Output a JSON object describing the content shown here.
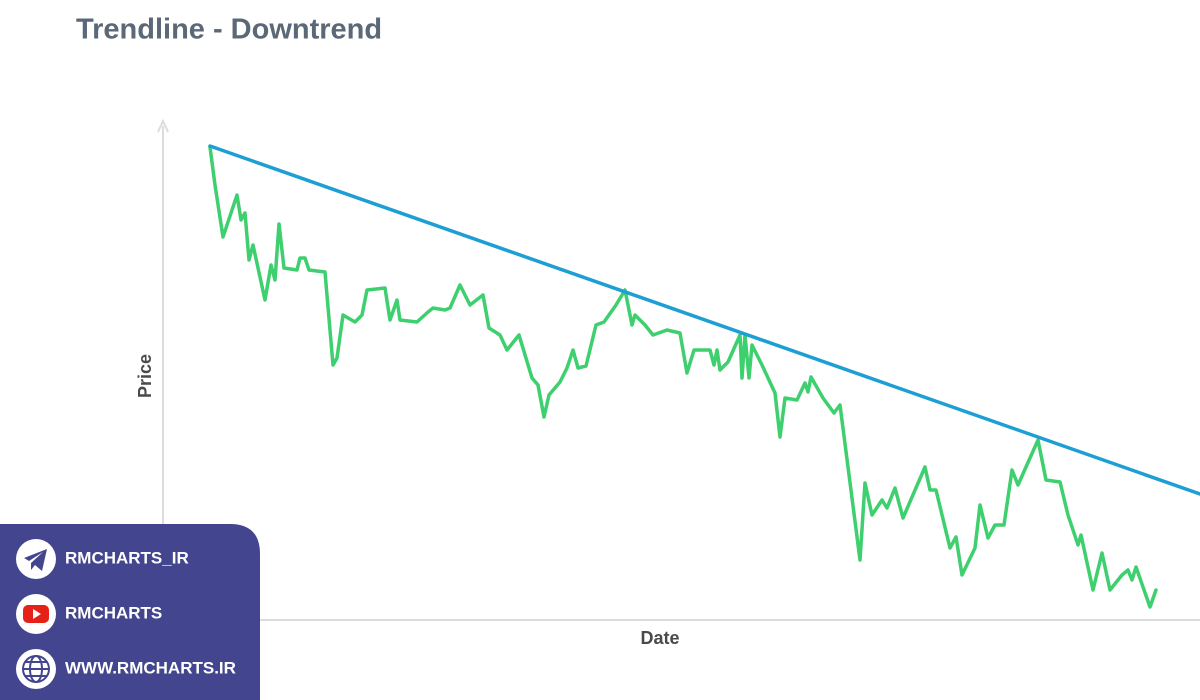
{
  "chart_data": {
    "type": "line",
    "title": "Trendline - Downtrend",
    "x_label": "Date",
    "y_label": "Price",
    "xlim": [
      0,
      1037
    ],
    "ylim": [
      0,
      500
    ],
    "grid": false,
    "series": [
      {
        "color": "#3ecf6e",
        "x": [
          47,
          52,
          60,
          74,
          78,
          82,
          86,
          90,
          102,
          108,
          112,
          116,
          121,
          134,
          137,
          142,
          146,
          162,
          170,
          174,
          180,
          192,
          199,
          204,
          222,
          227,
          234,
          237,
          254,
          265,
          270,
          282,
          287,
          297,
          307,
          320,
          326,
          337,
          344,
          356,
          369,
          375,
          381,
          386,
          397,
          404,
          410,
          415,
          423,
          433,
          441,
          453,
          462,
          469,
          472,
          482,
          490,
          504,
          517,
          524,
          531,
          547,
          551,
          554,
          557,
          565,
          577,
          579,
          582,
          586,
          589,
          599,
          612,
          617,
          622,
          634,
          642,
          645,
          648,
          660,
          671,
          677,
          697,
          702,
          709,
          719,
          724,
          732,
          740,
          762,
          767,
          773,
          787,
          793,
          799,
          812,
          817,
          825,
          832,
          841,
          849,
          855,
          875,
          883,
          897,
          905,
          915,
          918,
          930,
          939,
          947,
          959,
          965,
          969,
          973,
          987,
          993
        ],
        "values": [
          473,
          435,
          383,
          425,
          400,
          407,
          360,
          375,
          320,
          355,
          340,
          396,
          352,
          350,
          362,
          362,
          350,
          348,
          255,
          262,
          305,
          298,
          305,
          330,
          332,
          300,
          320,
          300,
          298,
          308,
          312,
          310,
          312,
          335,
          315,
          325,
          292,
          285,
          270,
          285,
          242,
          235,
          203,
          225,
          238,
          252,
          270,
          252,
          254,
          295,
          298,
          315,
          330,
          295,
          305,
          295,
          285,
          290,
          287,
          247,
          270,
          270,
          255,
          270,
          250,
          258,
          285,
          242,
          285,
          242,
          275,
          255,
          227,
          183,
          222,
          220,
          237,
          228,
          243,
          222,
          207,
          215,
          60,
          137,
          105,
          120,
          112,
          132,
          102,
          153,
          130,
          130,
          72,
          83,
          45,
          72,
          115,
          82,
          95,
          95,
          150,
          135,
          180,
          140,
          138,
          105,
          75,
          85,
          30,
          67,
          30,
          45,
          50,
          40,
          53,
          13,
          30
        ]
      },
      {
        "color": "#1e9fd4",
        "x": [
          47,
          1037
        ],
        "values": [
          474,
          126
        ]
      }
    ]
  },
  "watermark": {
    "items": [
      "RMCHARTS_IR",
      "RMCHARTS",
      "WWW.RMCHARTS.IR"
    ]
  }
}
